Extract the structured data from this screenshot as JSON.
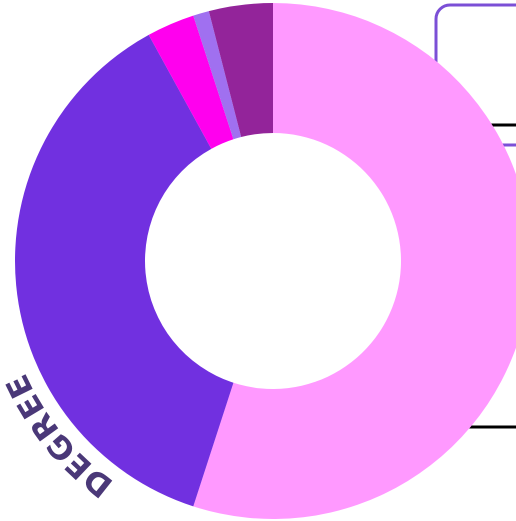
{
  "chart_data": {
    "type": "pie",
    "title": "DEGREE",
    "values": [
      55,
      37,
      3,
      1,
      4
    ],
    "colors": [
      "#ff99ff",
      "#7130e0",
      "#ff00ee",
      "#a070f0",
      "#93249a"
    ]
  }
}
